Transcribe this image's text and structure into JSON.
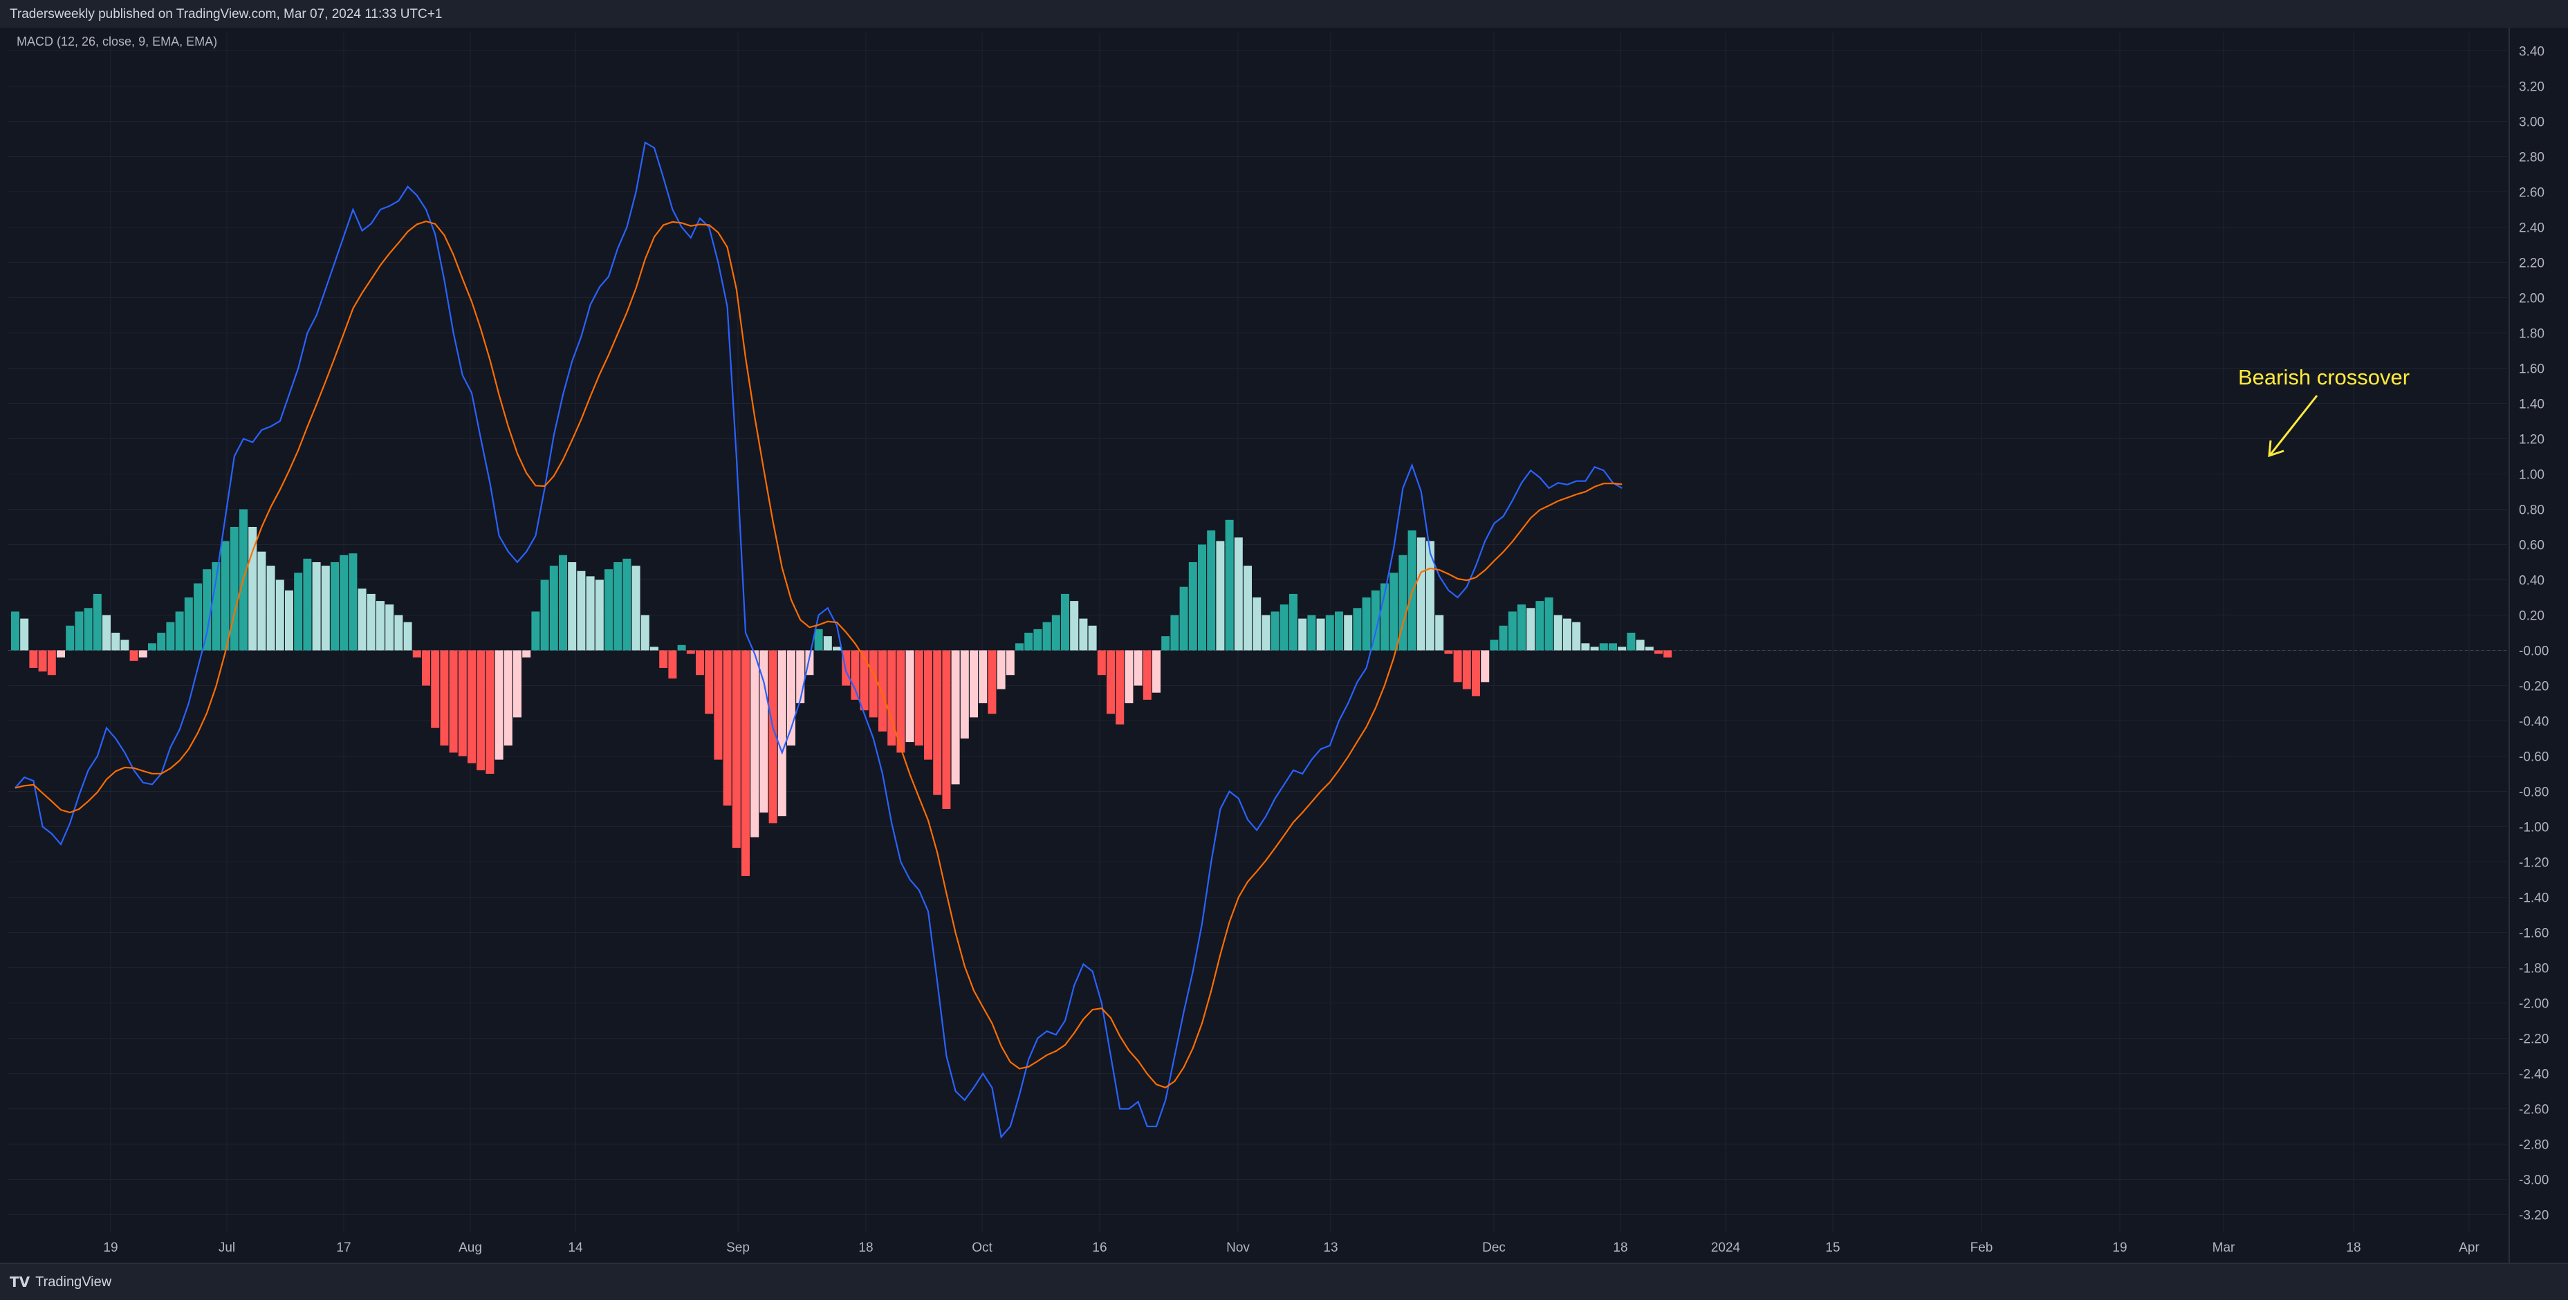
{
  "header": {
    "published": "Tradersweekly published on TradingView.com, Mar 07, 2024 11:33 UTC+1"
  },
  "footer": {
    "brand": "TradingView",
    "logo_icon": "tradingview-logo-icon"
  },
  "colors": {
    "background": "#131722",
    "grid": "#1f2330",
    "macd_line": "#2962ff",
    "signal_line": "#ff6d00",
    "hist_pos_strong": "#26a69a",
    "hist_pos_weak": "#b2dfdb",
    "hist_neg_strong": "#ff5252",
    "hist_neg_weak": "#ffcdd2",
    "annotation": "#ffeb3b"
  },
  "chart_data": {
    "type": "bar",
    "indicator_label": "MACD (12, 26, close, 9, EMA, EMA)",
    "x_tick_labels": [
      "19",
      "Jul",
      "17",
      "Aug",
      "14",
      "Sep",
      "18",
      "Oct",
      "16",
      "Nov",
      "13",
      "Dec",
      "18",
      "2024",
      "15",
      "Feb",
      "19",
      "Mar",
      "18",
      "Apr"
    ],
    "y_tick_labels": [
      "3.40",
      "3.20",
      "3.00",
      "2.80",
      "2.60",
      "2.40",
      "2.20",
      "2.00",
      "1.80",
      "1.60",
      "1.40",
      "1.20",
      "1.00",
      "0.80",
      "0.60",
      "0.40",
      "0.20",
      "-0.00",
      "-0.20",
      "-0.40",
      "-0.60",
      "-0.80",
      "-1.00",
      "-1.20",
      "-1.40",
      "-1.60",
      "-1.80",
      "-2.00",
      "-2.20",
      "-2.40",
      "-2.60",
      "-2.80",
      "-3.00",
      "-3.20"
    ],
    "ylim": [
      -3.3,
      3.5
    ],
    "grid": true,
    "histogram": [
      0.22,
      0.18,
      -0.1,
      -0.12,
      -0.14,
      -0.04,
      0.14,
      0.22,
      0.24,
      0.32,
      0.2,
      0.1,
      0.06,
      -0.06,
      -0.04,
      0.04,
      0.1,
      0.16,
      0.22,
      0.3,
      0.38,
      0.46,
      0.5,
      0.62,
      0.7,
      0.8,
      0.7,
      0.56,
      0.48,
      0.4,
      0.34,
      0.44,
      0.52,
      0.5,
      0.48,
      0.5,
      0.54,
      0.55,
      0.35,
      0.32,
      0.28,
      0.26,
      0.2,
      0.16,
      -0.04,
      -0.2,
      -0.44,
      -0.54,
      -0.58,
      -0.6,
      -0.64,
      -0.68,
      -0.7,
      -0.62,
      -0.54,
      -0.38,
      -0.04,
      0.22,
      0.4,
      0.48,
      0.54,
      0.5,
      0.45,
      0.42,
      0.4,
      0.46,
      0.5,
      0.52,
      0.48,
      0.2,
      0.02,
      -0.1,
      -0.16,
      0.03,
      -0.02,
      -0.14,
      -0.36,
      -0.62,
      -0.88,
      -1.12,
      -1.28,
      -1.06,
      -0.92,
      -0.98,
      -0.94,
      -0.54,
      -0.3,
      -0.14,
      0.12,
      0.08,
      0.02,
      -0.2,
      -0.28,
      -0.34,
      -0.38,
      -0.46,
      -0.54,
      -0.58,
      -0.52,
      -0.54,
      -0.62,
      -0.82,
      -0.9,
      -0.76,
      -0.5,
      -0.38,
      -0.3,
      -0.36,
      -0.22,
      -0.14,
      0.04,
      0.1,
      0.12,
      0.16,
      0.2,
      0.32,
      0.28,
      0.18,
      0.14,
      -0.14,
      -0.36,
      -0.42,
      -0.3,
      -0.2,
      -0.28,
      -0.24,
      0.08,
      0.2,
      0.36,
      0.5,
      0.6,
      0.68,
      0.62,
      0.74,
      0.64,
      0.48,
      0.3,
      0.2,
      0.22,
      0.26,
      0.32,
      0.18,
      0.2,
      0.18,
      0.2,
      0.22,
      0.2,
      0.24,
      0.3,
      0.34,
      0.38,
      0.44,
      0.54,
      0.68,
      0.64,
      0.62,
      0.2,
      -0.02,
      -0.18,
      -0.22,
      -0.26,
      -0.18,
      0.06,
      0.14,
      0.22,
      0.26,
      0.24,
      0.28,
      0.3,
      0.2,
      0.18,
      0.16,
      0.04,
      0.02,
      0.04,
      0.04,
      0.02,
      0.1,
      0.06,
      0.02,
      -0.02,
      -0.04
    ],
    "macd_line": [
      -0.78,
      -0.72,
      -0.74,
      -1.0,
      -1.04,
      -1.1,
      -0.98,
      -0.82,
      -0.68,
      -0.6,
      -0.44,
      -0.5,
      -0.58,
      -0.68,
      -0.75,
      -0.76,
      -0.7,
      -0.55,
      -0.45,
      -0.3,
      -0.1,
      0.1,
      0.4,
      0.75,
      1.1,
      1.2,
      1.18,
      1.25,
      1.27,
      1.3,
      1.45,
      1.6,
      1.8,
      1.9,
      2.05,
      2.2,
      2.35,
      2.5,
      2.38,
      2.42,
      2.5,
      2.52,
      2.55,
      2.63,
      2.58,
      2.5,
      2.36,
      2.1,
      1.8,
      1.56,
      1.46,
      1.2,
      0.95,
      0.65,
      0.56,
      0.5,
      0.56,
      0.65,
      0.92,
      1.22,
      1.45,
      1.64,
      1.78,
      1.96,
      2.06,
      2.12,
      2.28,
      2.4,
      2.6,
      2.88,
      2.85,
      2.68,
      2.5,
      2.4,
      2.34,
      2.45,
      2.4,
      2.2,
      1.95,
      1.1,
      0.1,
      -0.02,
      -0.18,
      -0.44,
      -0.58,
      -0.44,
      -0.28,
      -0.04,
      0.2,
      0.24,
      0.14,
      -0.12,
      -0.22,
      -0.36,
      -0.5,
      -0.7,
      -0.98,
      -1.2,
      -1.3,
      -1.36,
      -1.48,
      -1.88,
      -2.3,
      -2.5,
      -2.55,
      -2.48,
      -2.4,
      -2.48,
      -2.76,
      -2.7,
      -2.52,
      -2.32,
      -2.2,
      -2.16,
      -2.18,
      -2.1,
      -1.9,
      -1.78,
      -1.82,
      -2.0,
      -2.3,
      -2.6,
      -2.6,
      -2.56,
      -2.7,
      -2.7,
      -2.55,
      -2.3,
      -2.05,
      -1.82,
      -1.55,
      -1.2,
      -0.9,
      -0.8,
      -0.84,
      -0.96,
      -1.02,
      -0.94,
      -0.84,
      -0.76,
      -0.68,
      -0.7,
      -0.62,
      -0.56,
      -0.54,
      -0.4,
      -0.3,
      -0.18,
      -0.1,
      0.1,
      0.32,
      0.58,
      0.92,
      1.05,
      0.9,
      0.55,
      0.42,
      0.34,
      0.3,
      0.36,
      0.48,
      0.62,
      0.72,
      0.76,
      0.85,
      0.95,
      1.02,
      0.98,
      0.92,
      0.95,
      0.94,
      0.96,
      0.96,
      1.04,
      1.02,
      0.95,
      0.92
    ]
  },
  "annotation": {
    "text": "Bearish crossover"
  }
}
